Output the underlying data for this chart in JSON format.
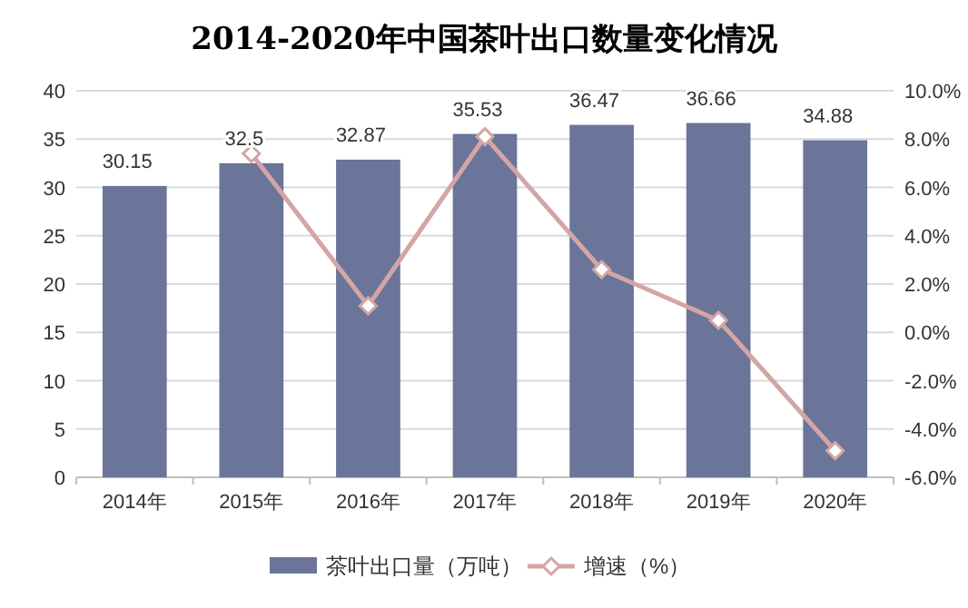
{
  "chart_data": {
    "type": "bar",
    "title": "2014-2020年中国茶叶出口数量变化情况",
    "categories": [
      "2014年",
      "2015年",
      "2016年",
      "2017年",
      "2018年",
      "2019年",
      "2020年"
    ],
    "series": [
      {
        "name": "茶叶出口量（万吨）",
        "type": "bar",
        "color": "#6b7599",
        "values": [
          30.15,
          32.5,
          32.87,
          35.53,
          36.47,
          36.66,
          34.88
        ],
        "value_labels": [
          "30.15",
          "32.5",
          "32.87",
          "35.53",
          "36.47",
          "36.66",
          "34.88"
        ]
      },
      {
        "name": "增速（%）",
        "type": "line",
        "axis": "y2",
        "color": "#d4a5a5",
        "values": [
          null,
          7.4,
          1.1,
          8.1,
          2.6,
          0.5,
          -4.9
        ]
      }
    ],
    "ylim": [
      0,
      40
    ],
    "yticks": [
      0,
      5,
      10,
      15,
      20,
      25,
      30,
      35,
      40
    ],
    "y2lim": [
      -6,
      10
    ],
    "y2ticks": [
      {
        "value": -6,
        "label": "-6.0%"
      },
      {
        "value": -4,
        "label": "-4.0%"
      },
      {
        "value": -2,
        "label": "-2.0%"
      },
      {
        "value": 0,
        "label": "0.0%"
      },
      {
        "value": 2,
        "label": "2.0%"
      },
      {
        "value": 4,
        "label": "4.0%"
      },
      {
        "value": 6,
        "label": "6.0%"
      },
      {
        "value": 8,
        "label": "8.0%"
      },
      {
        "value": 10,
        "label": "10.0%"
      }
    ],
    "grid": "y",
    "legend": "bottom",
    "marker": "diamond",
    "line_style": "solid"
  }
}
